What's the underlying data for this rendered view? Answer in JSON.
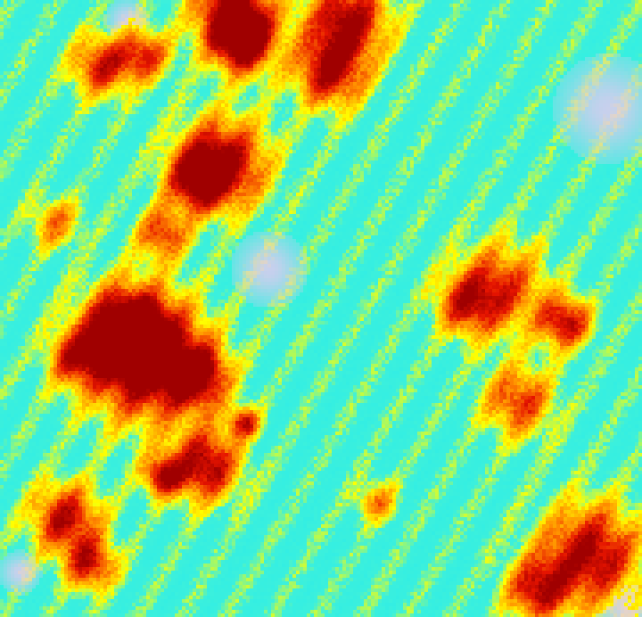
{
  "image": {
    "kind": "false-color raster",
    "palette": {
      "low": "#20f0f0",
      "very_low": "#e8c8f0",
      "mid": "#ffff00",
      "high": "#ff8800",
      "very_high": "#e00000",
      "peak": "#a00000"
    }
  }
}
